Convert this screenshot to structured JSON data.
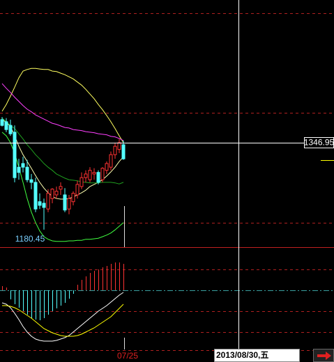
{
  "chart_data": {
    "type": "candlestick",
    "categories": [
      null,
      null,
      null,
      null,
      null,
      null,
      null,
      null,
      null,
      null,
      null,
      null,
      null,
      null,
      null,
      null,
      null,
      null,
      null,
      null,
      null,
      null,
      null,
      null,
      null,
      null,
      null,
      null,
      null,
      "07/25"
    ],
    "open": [
      1391,
      1387,
      1380,
      1367,
      1300,
      1307,
      1300,
      1276,
      1271,
      1234,
      1231,
      1220,
      1240,
      1247,
      1258,
      1247,
      1220,
      1234,
      1247,
      1263,
      1280,
      1276,
      1287,
      1290,
      1276,
      1294,
      1300,
      1324,
      1334,
      1343
    ],
    "high": [
      1396,
      1394,
      1391,
      1380,
      1316,
      1320,
      1314,
      1287,
      1280,
      1250,
      1240,
      1258,
      1260,
      1263,
      1271,
      1260,
      1247,
      1254,
      1274,
      1290,
      1294,
      1300,
      1298,
      1294,
      1300,
      1311,
      1330,
      1347,
      1354,
      1351
    ],
    "low": [
      1378,
      1367,
      1360,
      1271,
      1276,
      1290,
      1271,
      1258,
      1214,
      1220,
      1180.45,
      1214,
      1231,
      1240,
      1247,
      1214,
      1210,
      1227,
      1240,
      1258,
      1271,
      1271,
      1276,
      1267,
      1271,
      1287,
      1294,
      1316,
      1327,
      1314
    ],
    "close": [
      1380,
      1372,
      1364,
      1280,
      1290,
      1300,
      1276,
      1271,
      1220,
      1227,
      1223,
      1250,
      1258,
      1254,
      1263,
      1218,
      1240,
      1250,
      1267,
      1280,
      1287,
      1294,
      1290,
      1271,
      1298,
      1307,
      1324,
      1340,
      1347,
      1316
    ],
    "up_color": "#ff3232",
    "down_color": "#54ffff",
    "ylim": [
      1147,
      1620
    ],
    "lines": [
      {
        "color": "#ffff60",
        "values": [
          1407,
          1420,
          1436,
          1453,
          1471,
          1484,
          1487,
          1489,
          1489,
          1488,
          1487,
          1487,
          1484,
          1483,
          1480,
          1477,
          1473,
          1469,
          1463,
          1457,
          1449,
          1440,
          1431,
          1420,
          1410,
          1399,
          1387,
          1374,
          1360,
          1347
        ]
      },
      {
        "color": "#40ff40",
        "values": [
          1367,
          1360,
          1347,
          1327,
          1300,
          1271,
          1240,
          1214,
          1194,
          1178,
          1167,
          1162,
          1159,
          1158,
          1158,
          1158,
          1159,
          1159,
          1160,
          1160,
          1162,
          1162,
          1163,
          1164,
          1167,
          1170,
          1174,
          1180,
          1187,
          1194
        ]
      },
      {
        "color": "#ff40ff",
        "values": [
          1460,
          1451,
          1443,
          1434,
          1426,
          1418,
          1411,
          1406,
          1400,
          1396,
          1392,
          1388,
          1384,
          1382,
          1379,
          1376,
          1375,
          1372,
          1371,
          1370,
          1368,
          1367,
          1366,
          1364,
          1363,
          1362,
          1359,
          1358,
          1355,
          1351
        ]
      },
      {
        "color": "#ffffb0",
        "values": [
          1391,
          1386,
          1378,
          1360,
          1340,
          1324,
          1311,
          1298,
          1284,
          1271,
          1260,
          1251,
          1244,
          1240,
          1239,
          1239,
          1240,
          1243,
          1247,
          1251,
          1256,
          1263,
          1267,
          1271,
          1276,
          1283,
          1291,
          1300,
          1311,
          1320
        ]
      },
      {
        "color": "#20a020",
        "values": [
          1394,
          1387,
          1380,
          1374,
          1364,
          1354,
          1343,
          1334,
          1324,
          1316,
          1307,
          1300,
          1294,
          1287,
          1283,
          1279,
          1276,
          1275,
          1274,
          1272,
          1271,
          1270,
          1270,
          1270,
          1271,
          1271,
          1271,
          1270,
          1268,
          1271
        ]
      }
    ],
    "crosshair": {
      "price": 1346.95,
      "date": "2013/08/30,五"
    },
    "indicator": {
      "type": "macd",
      "ylim": [
        -88,
        60
      ],
      "histogram": [
        6,
        4,
        -13,
        -20,
        -25,
        -30,
        -35,
        -40,
        -42,
        -43,
        -40,
        -35,
        -30,
        -26,
        -22,
        -18,
        -12,
        -5,
        8,
        15,
        20,
        25,
        28,
        30,
        33,
        35,
        38,
        40,
        40,
        38
      ],
      "up_color": "#ff3232",
      "down_color": "#54ffff",
      "series": [
        {
          "color": "#ffffff",
          "values": [
            -18,
            -20,
            -25,
            -33,
            -42,
            -52,
            -60,
            -66,
            -70,
            -72,
            -73,
            -73,
            -73,
            -72,
            -70,
            -68,
            -65,
            -60,
            -55,
            -50,
            -45,
            -40,
            -35,
            -30,
            -26,
            -22,
            -17,
            -12,
            -7,
            -3
          ]
        },
        {
          "color": "#ffff00",
          "values": [
            -22,
            -22,
            -23,
            -25,
            -28,
            -32,
            -36,
            -40,
            -45,
            -50,
            -55,
            -58,
            -61,
            -63,
            -65,
            -66,
            -66,
            -66,
            -65,
            -63,
            -60,
            -57,
            -54,
            -50,
            -46,
            -42,
            -38,
            -32,
            -26,
            -20
          ]
        }
      ]
    }
  }
}
